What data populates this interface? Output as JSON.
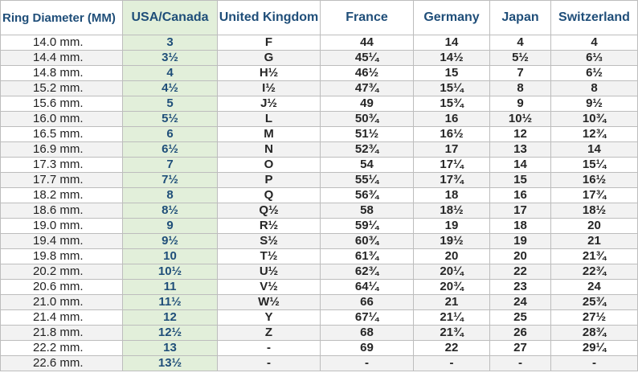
{
  "table": {
    "columns": [
      "Ring Diameter (MM)",
      "USA/Canada",
      "United Kingdom",
      "France",
      "Germany",
      "Japan",
      "Switzerland"
    ],
    "rows": [
      [
        "14.0 mm.",
        "3",
        "F",
        "44",
        "14",
        "4",
        "4"
      ],
      [
        "14.4 mm.",
        "3½",
        "G",
        "45¼",
        "14½",
        "5½",
        "6⅓"
      ],
      [
        "14.8 mm.",
        "4",
        "H½",
        "46½",
        "15",
        "7",
        "6½"
      ],
      [
        "15.2 mm.",
        "4½",
        "I½",
        "47¾",
        "15¼",
        "8",
        "8"
      ],
      [
        "15.6 mm.",
        "5",
        "J½",
        "49",
        "15¾",
        "9",
        "9½"
      ],
      [
        "16.0 mm.",
        "5½",
        "L",
        "50¾",
        "16",
        "10½",
        "10¾"
      ],
      [
        "16.5 mm.",
        "6",
        "M",
        "51½",
        "16½",
        "12",
        "12¾"
      ],
      [
        "16.9 mm.",
        "6½",
        "N",
        "52¾",
        "17",
        "13",
        "14"
      ],
      [
        "17.3 mm.",
        "7",
        "O",
        "54",
        "17¼",
        "14",
        "15¼"
      ],
      [
        "17.7 mm.",
        "7½",
        "P",
        "55¼",
        "17¾",
        "15",
        "16½"
      ],
      [
        "18.2 mm.",
        "8",
        "Q",
        "56¾",
        "18",
        "16",
        "17¾"
      ],
      [
        "18.6 mm.",
        "8½",
        "Q½",
        "58",
        "18½",
        "17",
        "18½"
      ],
      [
        "19.0 mm.",
        "9",
        "R½",
        "59¼",
        "19",
        "18",
        "20"
      ],
      [
        "19.4 mm.",
        "9½",
        "S½",
        "60¾",
        "19½",
        "19",
        "21"
      ],
      [
        "19.8 mm.",
        "10",
        "T½",
        "61¾",
        "20",
        "20",
        "21¾"
      ],
      [
        "20.2 mm.",
        "10½",
        "U½",
        "62¾",
        "20¼",
        "22",
        "22¾"
      ],
      [
        "20.6 mm.",
        "11",
        "V½",
        "64¼",
        "20¾",
        "23",
        "24"
      ],
      [
        "21.0 mm.",
        "11½",
        "W½",
        "66",
        "21",
        "24",
        "25¾"
      ],
      [
        "21.4 mm.",
        "12",
        "Y",
        "67¼",
        "21¼",
        "25",
        "27½"
      ],
      [
        "21.8 mm.",
        "12½",
        "Z",
        "68",
        "21¾",
        "26",
        "28¾"
      ],
      [
        "22.2 mm.",
        "13",
        "-",
        "69",
        "22",
        "27",
        "29¼"
      ],
      [
        "22.6 mm.",
        "13½",
        "-",
        "-",
        "-",
        "-",
        "-"
      ]
    ]
  },
  "colors": {
    "header_text": "#1f4e79",
    "highlight_column_bg": "#e2efda",
    "stripe_bg": "#f2f2f2",
    "grid_line": "#bdbdbd"
  }
}
